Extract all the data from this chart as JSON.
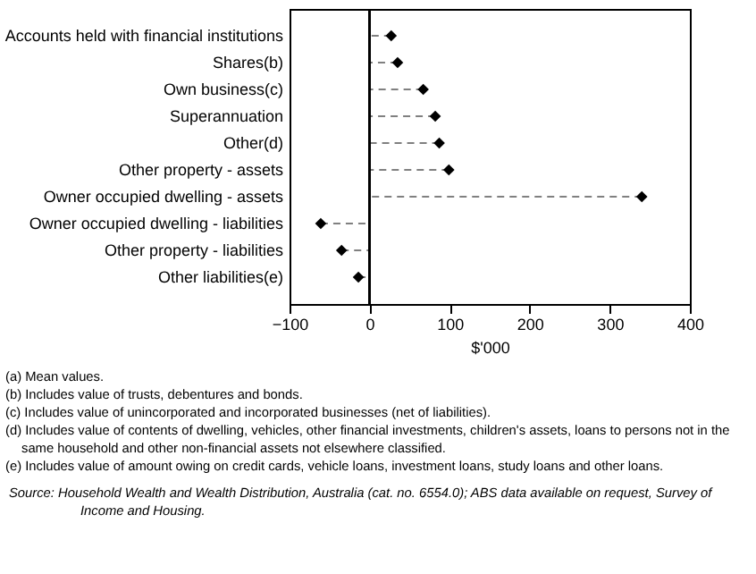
{
  "chart_data": {
    "type": "lollipop",
    "orientation": "horizontal",
    "xlabel": "$'000",
    "categories": [
      "Accounts held with financial institutions",
      "Shares(b)",
      "Own business(c)",
      "Superannuation",
      "Other(d)",
      "Other property - assets",
      "Owner occupied dwelling - assets",
      "Owner occupied dwelling - liabilities",
      "Other property - liabilities",
      "Other liabilities(e)"
    ],
    "series": [
      {
        "color": "#000000",
        "values": [
          27,
          35,
          67,
          82,
          87,
          99,
          340,
          -61,
          -35,
          -14
        ]
      }
    ],
    "xlim": [
      -100,
      400
    ],
    "xticks": [
      -100,
      0,
      100,
      200,
      300,
      400
    ],
    "grid": false,
    "marker": "diamond",
    "line_style": "dashed",
    "ref_lines": [
      {
        "axis": "x",
        "value": 0
      }
    ],
    "annotations": [
      "(a) Mean values.",
      "(b) Includes value of trusts, debentures and bonds.",
      "(c) Includes value of unincorporated and incorporated businesses (net of liabilities).",
      "(d) Includes value of contents of dwelling, vehicles, other financial investments, children's assets, loans to persons not in the same household and other non-financial assets not elsewhere classified.",
      "(e) Includes value of amount owing on credit cards, vehicle loans, investment loans, study loans and other loans.",
      "Source: Household Wealth and Wealth Distribution, Australia (cat. no. 6554.0); ABS data available on request, Survey of Income and Housing."
    ]
  }
}
